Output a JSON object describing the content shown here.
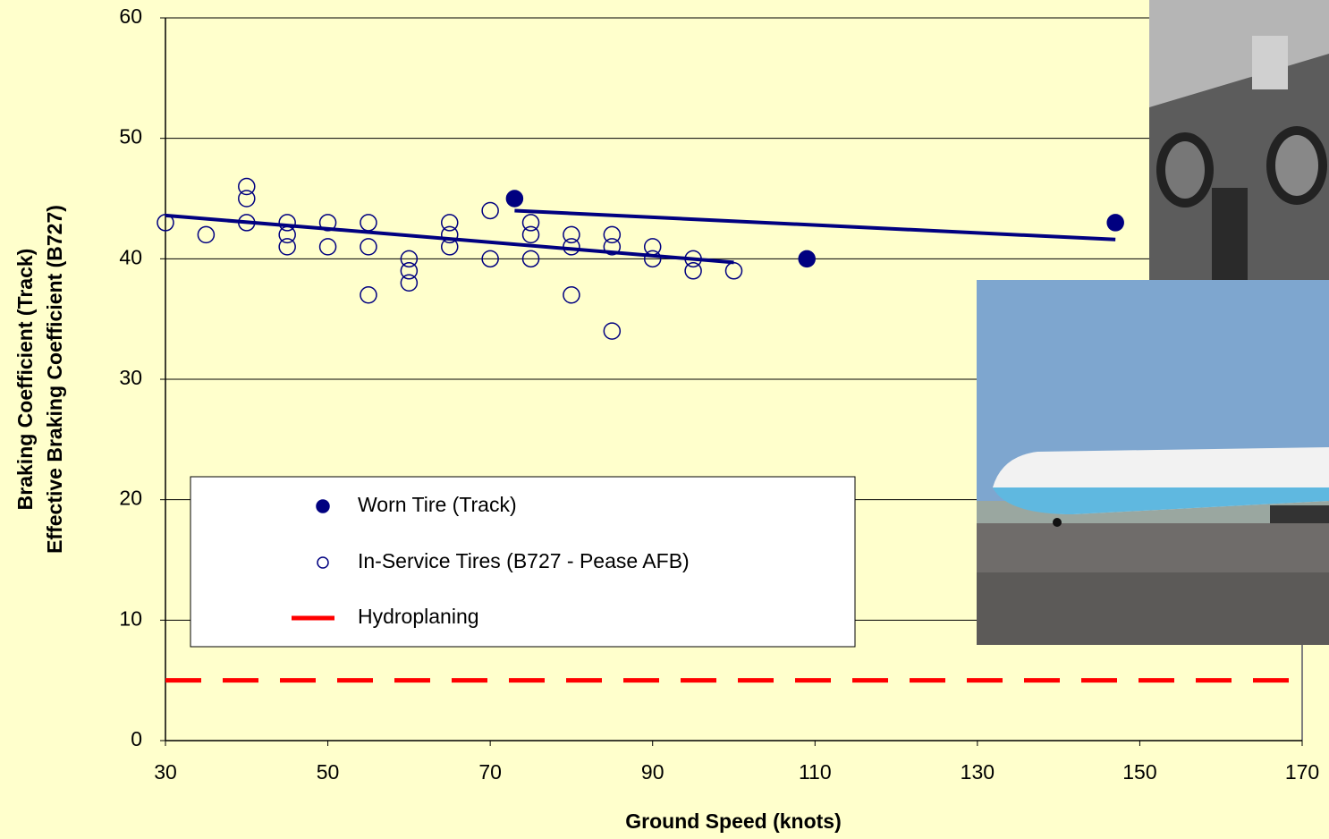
{
  "chart_data": {
    "type": "scatter",
    "x_label": "Ground Speed (knots)",
    "y_label_lines": [
      "Braking Coefficient (Track)",
      "Effective Braking Coefficient (B727)"
    ],
    "xlim": [
      30,
      170
    ],
    "xticks": [
      30,
      50,
      70,
      90,
      110,
      130,
      150,
      170
    ],
    "ylim": [
      0,
      60
    ],
    "yticks": [
      0,
      10,
      20,
      30,
      40,
      50,
      60
    ],
    "grid": true,
    "series": [
      {
        "name": "Worn Tire (Track)",
        "color": "#000080",
        "filled": true,
        "x": [
          73,
          109,
          147
        ],
        "values": [
          45,
          40,
          43
        ]
      },
      {
        "name": "In-Service Tires (B727 - Pease AFB)",
        "color": "#000080",
        "filled": false,
        "x": [
          30,
          35,
          40,
          40,
          40,
          45,
          45,
          45,
          50,
          50,
          55,
          55,
          55,
          60,
          60,
          60,
          65,
          65,
          65,
          70,
          70,
          75,
          75,
          75,
          80,
          80,
          80,
          85,
          85,
          85,
          90,
          90,
          95,
          95,
          100
        ],
        "values": [
          43,
          42,
          46,
          45,
          43,
          43,
          42,
          41,
          43,
          41,
          43,
          41,
          37,
          40,
          39,
          38,
          43,
          42,
          41,
          44,
          40,
          43,
          42,
          40,
          42,
          41,
          37,
          42,
          41,
          34,
          41,
          40,
          40,
          39,
          39
        ]
      }
    ],
    "trendlines": [
      {
        "color": "#000080",
        "x": [
          30,
          100
        ],
        "y": [
          43.6,
          39.7
        ]
      },
      {
        "color": "#000080",
        "x": [
          73,
          147
        ],
        "y": [
          44,
          41.6
        ]
      }
    ],
    "hydroplaning": {
      "name": "Hydroplaning",
      "value": 5,
      "color": "#ff0000"
    }
  }
}
